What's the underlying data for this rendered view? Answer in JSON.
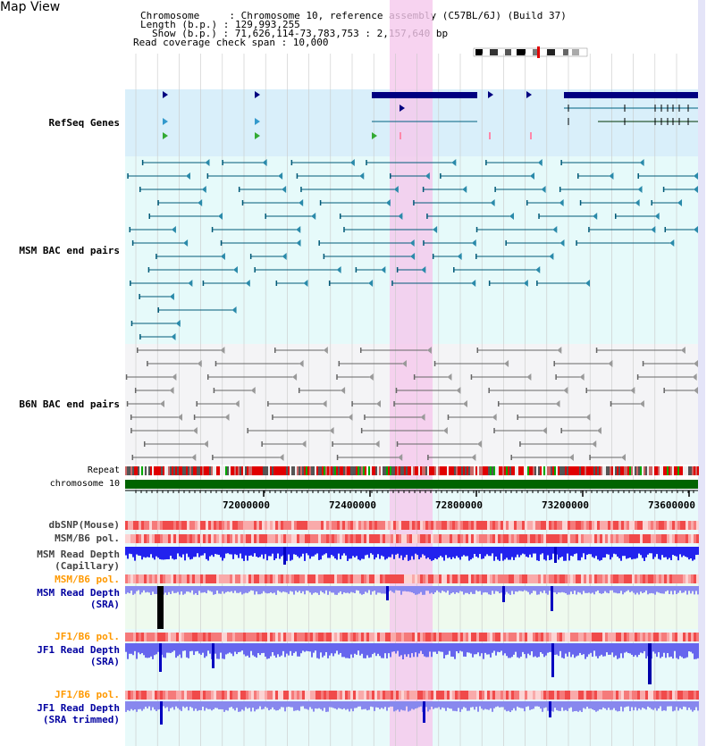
{
  "title": "Map View",
  "info": {
    "chromosome": "Chromosome     : Chromosome 10, reference assembly (C57BL/6J) (Build 37)",
    "length": "Length (b.p.) : 129,993,255",
    "show": "Show (b.p.) : 71,626,114-73,783,753 : 2,157,640 bp",
    "coverage": "Read coverage check span : 10,000"
  },
  "tracks": {
    "refseq": "RefSeq Genes",
    "msm_bac": "MSM BAC end pairs",
    "b6n_bac": "B6N BAC end pairs",
    "repeat": "Repeat",
    "chromosome": "chromosome 10",
    "dbsnp": "dbSNP(Mouse)",
    "msm_b6_pol_1": "MSM/B6 pol.",
    "msm_read_depth_cap_1": "MSM Read Depth",
    "msm_read_depth_cap_2": "(Capillary)",
    "msm_b6_pol_2": "MSM/B6 pol.",
    "msm_read_depth_sra_1": "MSM Read Depth",
    "msm_read_depth_sra_2": "(SRA)",
    "jf1_b6_pol_1": "JF1/B6 pol.",
    "jf1_read_depth_sra_1": "JF1 Read Depth",
    "jf1_read_depth_sra_2": "(SRA)",
    "jf1_b6_pol_2": "JF1/B6 pol.",
    "jf1_read_depth_trim_1": "JF1 Read Depth",
    "jf1_read_depth_trim_2": "(SRA trimmed)"
  },
  "axis_ticks": [
    "72000000",
    "72400000",
    "72800000",
    "73200000",
    "73600000"
  ],
  "colors": {
    "refseq": "#000080",
    "msm_bac": "#005a78",
    "b6n_bac": "#666666",
    "orange": "#ff9900",
    "blue_label": "#0000a0",
    "highlight": "#f5c8ec",
    "chromosome_bar": "#006400"
  }
}
